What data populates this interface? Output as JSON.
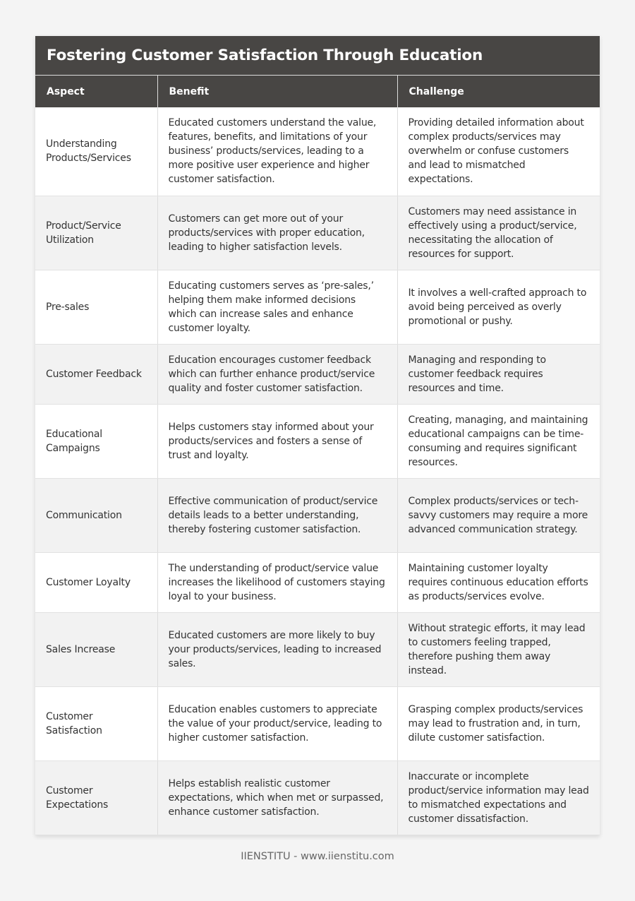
{
  "title": "Fostering Customer Satisfaction Through Education",
  "columns": [
    "Aspect",
    "Benefit",
    "Challenge"
  ],
  "rows": [
    {
      "aspect": "Understanding Products/Services",
      "benefit": "Educated customers understand the value, features, benefits, and limitations of your business’ products/services, leading to a more positive user experience and higher customer satisfaction.",
      "challenge": "Providing detailed information about complex products/services may overwhelm or confuse customers and lead to mismatched expectations."
    },
    {
      "aspect": "Product/Service Utilization",
      "benefit": "Customers can get more out of your products/services with proper education, leading to higher satisfaction levels.",
      "challenge": "Customers may need assistance in effectively using a product/service, necessitating the allocation of resources for support."
    },
    {
      "aspect": "Pre-sales",
      "benefit": "Educating customers serves as ‘pre-sales,’ helping them make informed decisions which can increase sales and enhance customer loyalty.",
      "challenge": "It involves a well-crafted approach to avoid being perceived as overly promotional or pushy."
    },
    {
      "aspect": "Customer Feedback",
      "benefit": "Education encourages customer feedback which can further enhance product/service quality and foster customer satisfaction.",
      "challenge": "Managing and responding to customer feedback requires resources and time."
    },
    {
      "aspect": "Educational Campaigns",
      "benefit": "Helps customers stay informed about your products/services and fosters a sense of trust and loyalty.",
      "challenge": "Creating, managing, and maintaining educational campaigns can be time-consuming and requires significant resources."
    },
    {
      "aspect": "Communication",
      "benefit": "Effective communication of product/service details leads to a better understanding, thereby fostering customer satisfaction.",
      "challenge": "Complex products/services or tech-savvy customers may require a more advanced communication strategy."
    },
    {
      "aspect": "Customer Loyalty",
      "benefit": "The understanding of product/service value increases the likelihood of customers staying loyal to your business.",
      "challenge": "Maintaining customer loyalty requires continuous education efforts as products/services evolve."
    },
    {
      "aspect": "Sales Increase",
      "benefit": "Educated customers are more likely to buy your products/services, leading to increased sales.",
      "challenge": "Without strategic efforts, it may lead to customers feeling trapped, therefore pushing them away instead."
    },
    {
      "aspect": "Customer Satisfaction",
      "benefit": "Education enables customers to appreciate the value of your product/service, leading to higher customer satisfaction.",
      "challenge": "Grasping complex products/services may lead to frustration and, in turn, dilute customer satisfaction."
    },
    {
      "aspect": "Customer Expectations",
      "benefit": "Helps establish realistic customer expectations, which when met or surpassed, enhance customer satisfaction.",
      "challenge": "Inaccurate or incomplete product/service information may lead to mismatched expectations and customer dissatisfaction."
    }
  ],
  "footer": "IIENSTITU - www.iienstitu.com"
}
